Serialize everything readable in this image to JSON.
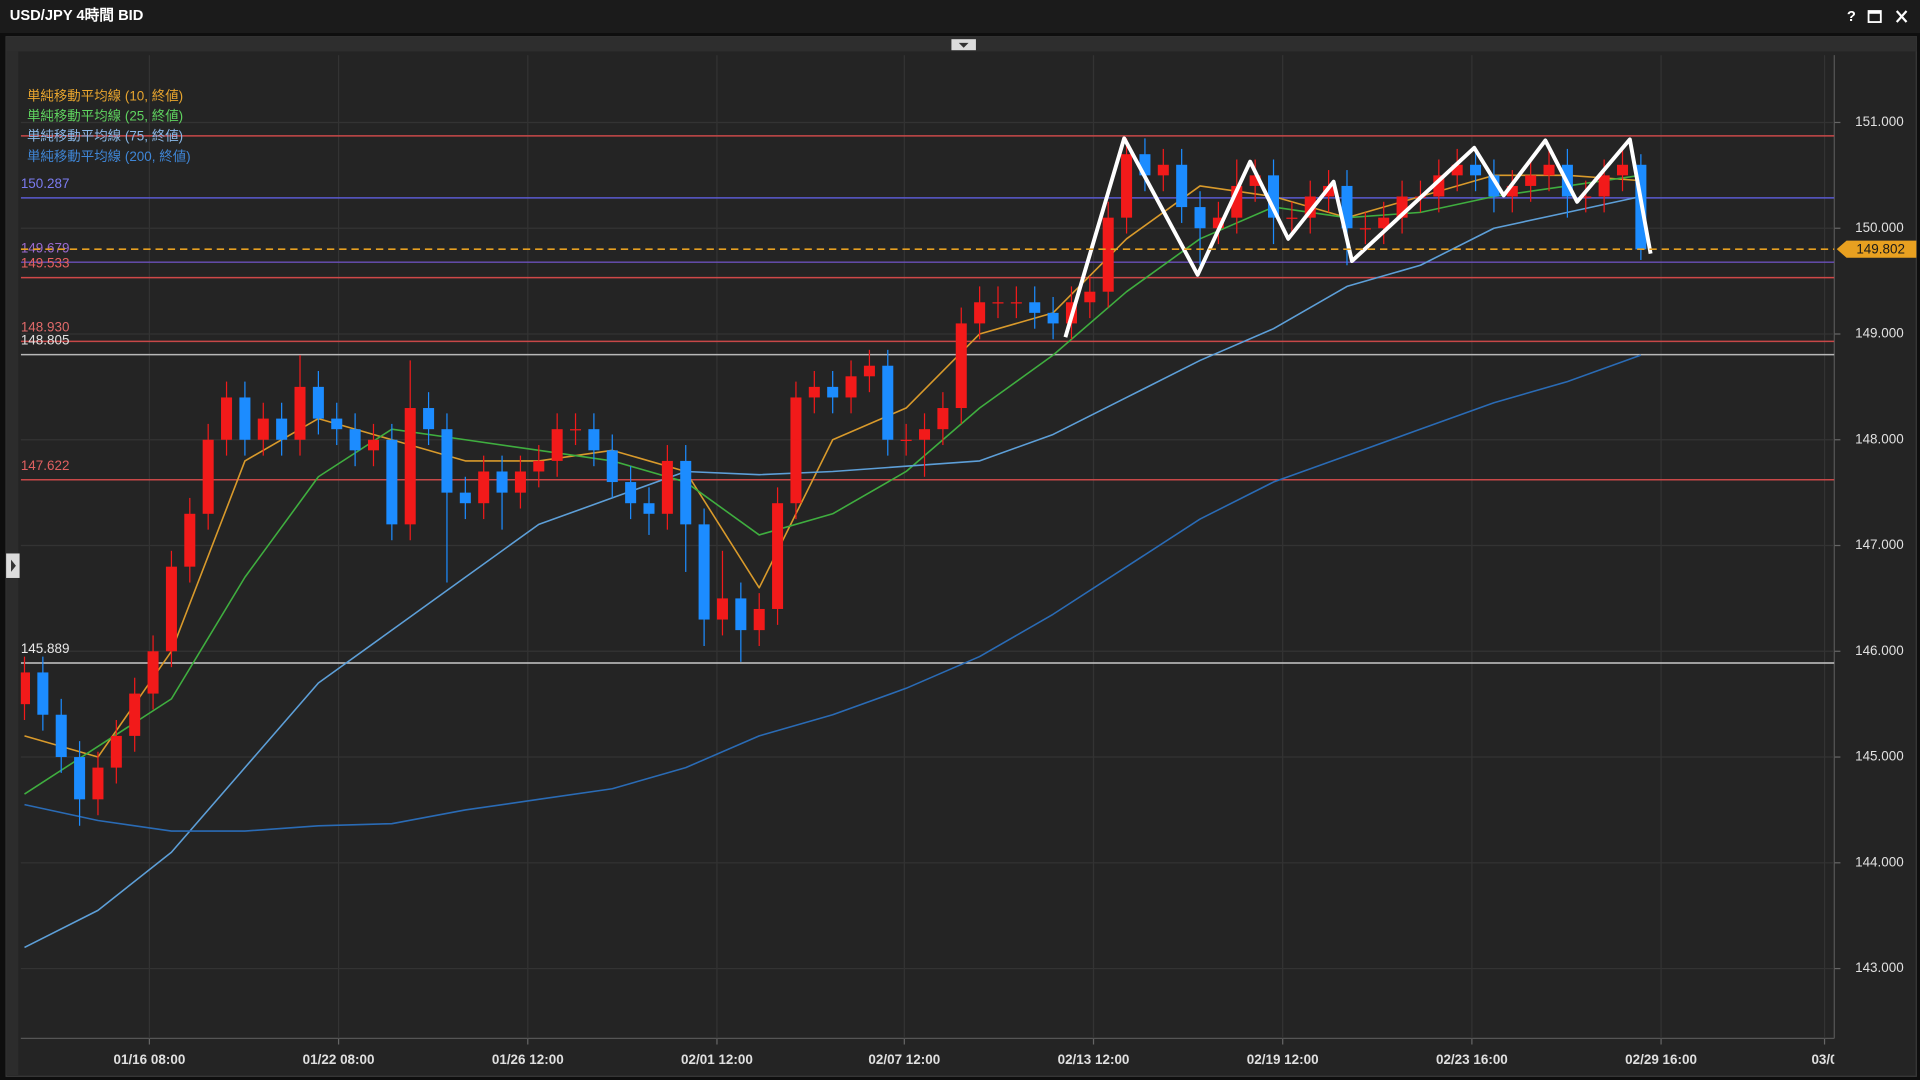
{
  "window": {
    "help": "?"
  },
  "chart_data": {
    "type": "candlestick",
    "title": "USD/JPY 4時間 BID",
    "up_color": "#f21a1a",
    "down_color": "#1c8cff",
    "xlim": [
      -0.2,
      98.53
    ],
    "xticks": [
      {
        "value": 6.8,
        "label": "01/16 08:00"
      },
      {
        "value": 17.1,
        "label": "01/22 08:00"
      },
      {
        "value": 27.4,
        "label": "01/26 12:00"
      },
      {
        "value": 37.7,
        "label": "02/01 12:00"
      },
      {
        "value": 47.9,
        "label": "02/07 12:00"
      },
      {
        "value": 58.2,
        "label": "02/13 12:00"
      },
      {
        "value": 68.5,
        "label": "02/19 12:00"
      },
      {
        "value": 78.8,
        "label": "02/23 16:00"
      },
      {
        "value": 89.1,
        "label": "02/29 16:00"
      },
      {
        "value": 98,
        "label": "03/0"
      }
    ],
    "ylim": [
      142.34,
      151.637
    ],
    "yticks": [
      {
        "value": 143,
        "label": "143.000"
      },
      {
        "value": 144,
        "label": "144.000"
      },
      {
        "value": 145,
        "label": "145.000"
      },
      {
        "value": 146,
        "label": "146.000"
      },
      {
        "value": 147,
        "label": "147.000"
      },
      {
        "value": 148,
        "label": "148.000"
      },
      {
        "value": 149,
        "label": "149.000"
      },
      {
        "value": 150,
        "label": "150.000"
      },
      {
        "value": 151,
        "label": "151.000"
      }
    ],
    "grid": true,
    "x": [
      0,
      1,
      2,
      3,
      4,
      5,
      6,
      7,
      8,
      9,
      10,
      11,
      12,
      13,
      14,
      15,
      16,
      17,
      18,
      19,
      20,
      21,
      22,
      23,
      24,
      25,
      26,
      27,
      28,
      29,
      30,
      31,
      32,
      33,
      34,
      35,
      36,
      37,
      38,
      39,
      40,
      41,
      42,
      43,
      44,
      45,
      46,
      47,
      48,
      49,
      50,
      51,
      52,
      53,
      54,
      55,
      56,
      57,
      58,
      59,
      60,
      61,
      62,
      63,
      64,
      65,
      66,
      67,
      68,
      69,
      70,
      71,
      72,
      73,
      74,
      75,
      76,
      77,
      78,
      79,
      80,
      81,
      82,
      83,
      84,
      85,
      86,
      87,
      88
    ],
    "open": [
      145.5,
      145.8,
      145.4,
      145.0,
      144.6,
      144.9,
      145.2,
      145.6,
      146.0,
      146.8,
      147.3,
      148.0,
      148.4,
      148.0,
      148.2,
      148.0,
      148.5,
      148.2,
      148.1,
      147.9,
      148.0,
      147.2,
      148.3,
      148.1,
      147.5,
      147.4,
      147.7,
      147.5,
      147.7,
      147.8,
      148.1,
      148.1,
      147.9,
      147.6,
      147.4,
      147.3,
      147.8,
      147.2,
      146.3,
      146.5,
      146.2,
      146.4,
      147.4,
      148.4,
      148.5,
      148.4,
      148.6,
      148.7,
      148.0,
      148.0,
      148.1,
      148.3,
      149.1,
      149.3,
      149.3,
      149.3,
      149.2,
      149.1,
      149.3,
      149.4,
      150.1,
      150.7,
      150.5,
      150.6,
      150.2,
      150.0,
      150.1,
      150.4,
      150.5,
      150.1,
      150.1,
      150.3,
      150.4,
      150.0,
      150.0,
      150.1,
      150.3,
      150.3,
      150.5,
      150.6,
      150.5,
      150.3,
      150.4,
      150.5,
      150.6,
      150.3,
      150.3,
      150.5,
      150.6
    ],
    "high": [
      145.95,
      145.95,
      145.55,
      145.15,
      145.05,
      145.35,
      145.75,
      146.15,
      146.95,
      147.45,
      148.15,
      148.55,
      148.55,
      148.35,
      148.35,
      148.8,
      148.65,
      148.35,
      148.25,
      148.15,
      148.15,
      148.75,
      148.45,
      148.25,
      147.65,
      147.85,
      147.85,
      147.85,
      147.95,
      148.25,
      148.25,
      148.25,
      148.05,
      147.75,
      147.55,
      147.95,
      147.95,
      147.35,
      146.95,
      146.65,
      146.55,
      147.55,
      148.55,
      148.65,
      148.65,
      148.75,
      148.85,
      148.85,
      148.15,
      148.25,
      148.45,
      149.25,
      149.45,
      149.45,
      149.45,
      149.45,
      149.35,
      149.45,
      149.55,
      150.25,
      150.85,
      150.85,
      150.75,
      150.75,
      150.35,
      150.25,
      150.65,
      150.65,
      150.65,
      150.25,
      150.45,
      150.55,
      150.55,
      150.15,
      150.25,
      150.45,
      150.45,
      150.65,
      150.75,
      150.75,
      150.65,
      150.55,
      150.65,
      150.75,
      150.75,
      150.45,
      150.65,
      150.75,
      150.7
    ],
    "low": [
      145.35,
      145.25,
      144.85,
      144.35,
      144.45,
      144.75,
      145.05,
      145.45,
      145.85,
      146.65,
      147.15,
      147.85,
      147.85,
      147.85,
      147.85,
      147.85,
      148.05,
      147.95,
      147.75,
      147.75,
      147.05,
      147.05,
      147.95,
      146.65,
      147.25,
      147.25,
      147.15,
      147.35,
      147.55,
      147.65,
      147.95,
      147.75,
      147.45,
      147.25,
      147.1,
      147.15,
      146.75,
      146.05,
      146.15,
      145.9,
      146.05,
      146.25,
      147.25,
      148.25,
      148.25,
      148.25,
      148.45,
      147.85,
      147.85,
      147.65,
      147.95,
      148.15,
      148.95,
      149.15,
      149.15,
      149.05,
      148.95,
      148.95,
      149.15,
      149.25,
      149.95,
      150.35,
      150.35,
      150.05,
      149.65,
      149.85,
      149.95,
      150.25,
      149.85,
      149.95,
      149.95,
      150.15,
      149.65,
      149.85,
      149.85,
      149.95,
      150.15,
      150.15,
      150.35,
      150.35,
      150.15,
      150.15,
      150.25,
      150.35,
      150.1,
      150.15,
      150.15,
      150.35,
      149.7
    ],
    "close": [
      145.8,
      145.4,
      145.0,
      144.6,
      144.9,
      145.2,
      145.6,
      146.0,
      146.8,
      147.3,
      148.0,
      148.4,
      148.0,
      148.2,
      148.0,
      148.5,
      148.2,
      148.1,
      147.9,
      148.0,
      147.2,
      148.3,
      148.1,
      147.5,
      147.4,
      147.7,
      147.5,
      147.7,
      147.8,
      148.1,
      148.1,
      147.9,
      147.6,
      147.4,
      147.3,
      147.8,
      147.2,
      146.3,
      146.5,
      146.2,
      146.4,
      147.4,
      148.4,
      148.5,
      148.4,
      148.6,
      148.7,
      148.0,
      148.0,
      148.1,
      148.3,
      149.1,
      149.3,
      149.3,
      149.3,
      149.2,
      149.1,
      149.3,
      149.4,
      150.1,
      150.7,
      150.5,
      150.6,
      150.2,
      150.0,
      150.1,
      150.4,
      150.5,
      150.1,
      150.1,
      150.3,
      150.4,
      150.0,
      150.0,
      150.1,
      150.3,
      150.3,
      150.5,
      150.6,
      150.5,
      150.3,
      150.4,
      150.5,
      150.6,
      150.3,
      150.3,
      150.5,
      150.6,
      149.8
    ],
    "series": [
      {
        "name": "単純移動平均線 (10, 終値)",
        "color": "#d99a2b",
        "label_color": "#e8a52e",
        "x": [
          0,
          4,
          8,
          12,
          16,
          20,
          24,
          28,
          32,
          36,
          40,
          44,
          48,
          52,
          56,
          60,
          64,
          68,
          72,
          76,
          80,
          84,
          88
        ],
        "values": [
          145.2,
          145.0,
          146.0,
          147.8,
          148.2,
          148.0,
          147.8,
          147.8,
          147.9,
          147.7,
          146.6,
          148.0,
          148.3,
          149.0,
          149.2,
          149.9,
          150.4,
          150.3,
          150.1,
          150.3,
          150.5,
          150.5,
          150.45
        ]
      },
      {
        "name": "単純移動平均線 (25, 終値)",
        "color": "#3fae3f",
        "label_color": "#5fd35f",
        "x": [
          0,
          4,
          8,
          12,
          16,
          20,
          24,
          28,
          32,
          36,
          40,
          44,
          48,
          52,
          56,
          60,
          64,
          68,
          72,
          76,
          80,
          84,
          88
        ],
        "values": [
          144.65,
          145.1,
          145.55,
          146.7,
          147.65,
          148.1,
          148.0,
          147.9,
          147.8,
          147.6,
          147.1,
          147.3,
          147.7,
          148.3,
          148.8,
          149.4,
          149.9,
          150.2,
          150.1,
          150.15,
          150.3,
          150.4,
          150.5
        ]
      },
      {
        "name": "単純移動平均線 (75, 終値)",
        "color": "#5d9fd8",
        "label_color": "#8ab8e8",
        "x": [
          0,
          4,
          8,
          12,
          16,
          20,
          24,
          28,
          32,
          36,
          40,
          44,
          48,
          52,
          56,
          60,
          64,
          68,
          72,
          76,
          80,
          84,
          88
        ],
        "values": [
          143.2,
          143.55,
          144.1,
          144.9,
          145.7,
          146.2,
          146.7,
          147.2,
          147.45,
          147.7,
          147.67,
          147.7,
          147.75,
          147.8,
          148.05,
          148.4,
          148.75,
          149.05,
          149.45,
          149.65,
          150.0,
          150.15,
          150.3
        ]
      },
      {
        "name": "単純移動平均線 (200, 終値)",
        "color": "#2a6bb5",
        "label_color": "#3f86d6",
        "x": [
          0,
          4,
          8,
          12,
          16,
          20,
          24,
          28,
          32,
          36,
          40,
          44,
          48,
          52,
          56,
          60,
          64,
          68,
          72,
          76,
          80,
          84,
          88
        ],
        "values": [
          144.55,
          144.4,
          144.3,
          144.3,
          144.35,
          144.37,
          144.5,
          144.6,
          144.7,
          144.9,
          145.2,
          145.4,
          145.65,
          145.95,
          146.35,
          146.8,
          147.25,
          147.6,
          147.85,
          148.1,
          148.35,
          148.55,
          148.8
        ]
      }
    ],
    "levels": [
      {
        "value": 150.873,
        "color": "#c84848"
      },
      {
        "value": 150.287,
        "label": "150.287",
        "color": "#5a5ad0",
        "label_color": "#7b7bf0"
      },
      {
        "value": 149.679,
        "label": "149.679",
        "color": "#6a50b8",
        "label_color": "#9a6ad0"
      },
      {
        "value": 149.533,
        "label": "149.533",
        "color": "#d04848",
        "label_color": "#e86060"
      },
      {
        "value": 148.93,
        "label": "148.930",
        "color": "#c84848",
        "label_color": "#e06a6a"
      },
      {
        "value": 148.805,
        "label": "148.805",
        "color": "#b8b8b8",
        "label_color": "#e0e0e0"
      },
      {
        "value": 147.622,
        "label": "147.622",
        "color": "#c84848",
        "label_color": "#e06060"
      },
      {
        "value": 145.889,
        "label": "145.889",
        "color": "#c8c8c8",
        "label_color": "#e8e8e8"
      }
    ],
    "last_price": 149.802,
    "last_price_color": "#e8a020",
    "annotation_line": {
      "color": "#ffffff",
      "x": [
        56.67,
        59.87,
        63.87,
        66.73,
        68.8,
        71.27,
        72.27,
        78.93,
        80.53,
        82.8,
        84.53,
        87.4,
        88.53
      ],
      "y": [
        148.97,
        150.85,
        149.56,
        150.63,
        149.9,
        150.44,
        149.69,
        150.76,
        150.31,
        150.83,
        150.25,
        150.84,
        149.76
      ]
    }
  }
}
